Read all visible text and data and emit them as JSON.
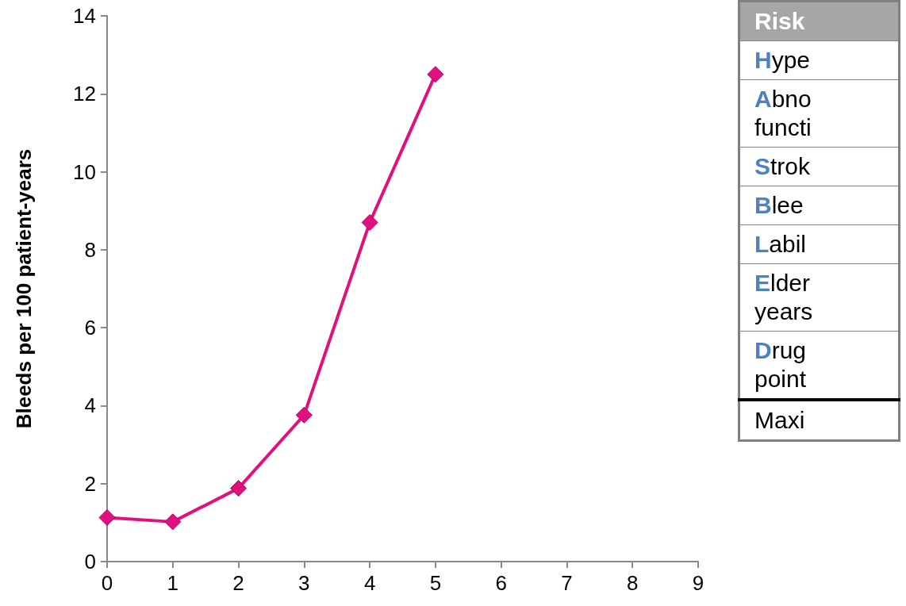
{
  "chart_data": {
    "type": "line",
    "ylabel": "Bleeds per 100 patient-years",
    "x": [
      0,
      1,
      2,
      3,
      4,
      5
    ],
    "series": [
      {
        "color": "#e0117f",
        "values": [
          1.13,
          1.02,
          1.88,
          3.76,
          8.7,
          12.5
        ]
      }
    ],
    "xlim": [
      0,
      9
    ],
    "xticks": [
      0,
      1,
      2,
      3,
      4,
      5,
      6,
      7,
      8,
      9
    ],
    "ylim": [
      0,
      14
    ],
    "yticks": [
      0,
      2,
      4,
      6,
      8,
      10,
      12,
      14
    ],
    "marker": "diamond",
    "line_style": "solid",
    "grid": false,
    "annotations": [
      "Risk",
      "Hype",
      "Abno\nfuncti",
      "Strok",
      "Blee",
      "Labil",
      "Elder\nyears",
      "Drug\npoint",
      "Maxi"
    ]
  }
}
